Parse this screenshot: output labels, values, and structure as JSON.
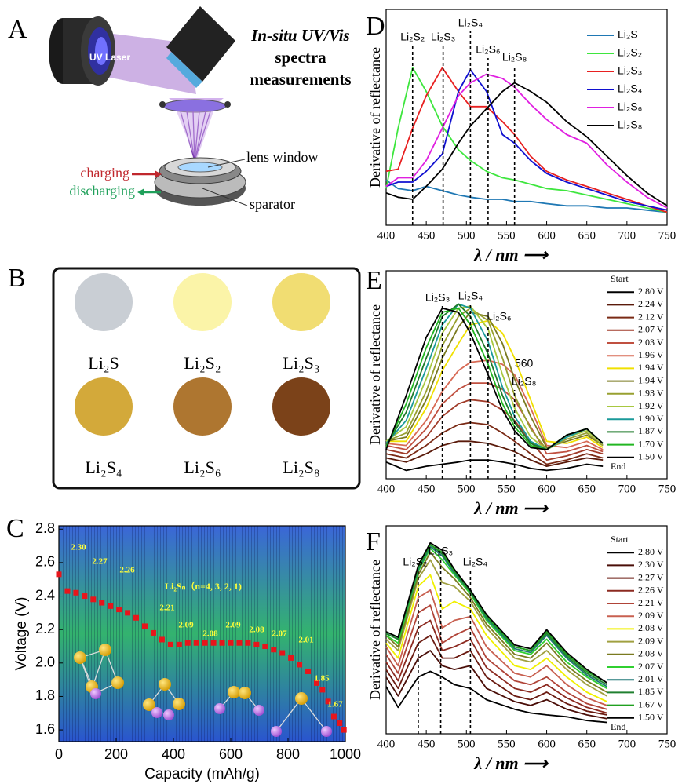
{
  "panel_labels": [
    "A",
    "B",
    "C",
    "D",
    "E",
    "F"
  ],
  "panel_a": {
    "title_lines": [
      "In-situ UV/Vis",
      "spectra",
      "measurements"
    ],
    "laser": "UV Laser",
    "lens": "lens window",
    "charging": "charging",
    "discharging": "discharging",
    "separator": "sparator"
  },
  "panel_b": {
    "samples": [
      {
        "label": "Li₂S",
        "color": "#c9ced4"
      },
      {
        "label": "Li₂S₂",
        "color": "#fbf4a8"
      },
      {
        "label": "Li₂S₃",
        "color": "#f1dd72"
      },
      {
        "label": "Li₂S₄",
        "color": "#d3a93a"
      },
      {
        "label": "Li₂S₆",
        "color": "#ae7630"
      },
      {
        "label": "Li₂S₈",
        "color": "#7b4219"
      }
    ]
  },
  "chart_data": [
    {
      "type": "scatter",
      "title": "Li₂Sₙ（n=4, 3, 2, 1)",
      "xlabel": "Capacity (mAh/g)",
      "ylabel": "Voltage (V)",
      "color": "#e8151b",
      "x": [
        0,
        30,
        60,
        90,
        120,
        150,
        180,
        210,
        240,
        270,
        300,
        330,
        360,
        390,
        420,
        450,
        480,
        510,
        540,
        570,
        600,
        630,
        660,
        690,
        720,
        750,
        780,
        810,
        840,
        870,
        900,
        920,
        940,
        960,
        980,
        995
      ],
      "values": [
        2.53,
        2.43,
        2.42,
        2.4,
        2.38,
        2.36,
        2.34,
        2.32,
        2.3,
        2.27,
        2.22,
        2.18,
        2.14,
        2.11,
        2.11,
        2.12,
        2.12,
        2.12,
        2.12,
        2.12,
        2.12,
        2.12,
        2.12,
        2.11,
        2.1,
        2.08,
        2.06,
        2.03,
        1.99,
        1.95,
        1.88,
        1.84,
        1.77,
        1.68,
        1.64,
        1.6
      ],
      "annotations": [
        "2.30",
        "2.27",
        "2.26",
        "2.21",
        "2.09",
        "2.08",
        "2.09",
        "2.08",
        "2.07",
        "2.01",
        "1.85",
        "1.67"
      ],
      "xlim": [
        0,
        1000
      ],
      "xticks": [
        0,
        200,
        400,
        600,
        800,
        1000
      ],
      "ylim": [
        1.53,
        2.82
      ],
      "yticks": [
        1.6,
        1.8,
        {
          "value": 2,
          "label": "2.0"
        },
        2.2,
        2.4,
        2.6,
        2.8
      ]
    },
    {
      "type": "line",
      "xlabel": "λ / nm ⟶",
      "ylabel": "Derivative of reflectance",
      "x": [
        400,
        415,
        433,
        450,
        470,
        490,
        505,
        525,
        545,
        560,
        580,
        600,
        625,
        650,
        675,
        700,
        725,
        750
      ],
      "series": [
        {
          "name": "Li₂S",
          "color": "#1f78b4",
          "values": [
            21,
            17,
            16,
            18,
            16,
            14,
            13,
            12,
            12,
            11,
            11,
            10,
            9,
            9,
            8,
            8,
            7,
            6
          ]
        },
        {
          "name": "Li₂S₂",
          "color": "#3ee63e",
          "values": [
            17,
            45,
            73,
            62,
            46,
            35,
            30,
            25,
            22,
            21,
            19,
            17,
            16,
            14,
            12,
            10,
            8,
            6
          ]
        },
        {
          "name": "Li₂S₃",
          "color": "#e82020",
          "values": [
            25,
            26,
            45,
            60,
            73,
            62,
            55,
            55,
            48,
            42,
            32,
            25,
            21,
            18,
            15,
            12,
            9,
            6
          ]
        },
        {
          "name": "Li₂S₄",
          "color": "#1010d0",
          "values": [
            18,
            20,
            20,
            25,
            33,
            62,
            72,
            62,
            42,
            38,
            30,
            24,
            20,
            17,
            14,
            11,
            9,
            7
          ]
        },
        {
          "name": "Li₂S₆",
          "color": "#e020e0",
          "values": [
            18,
            22,
            22,
            30,
            45,
            60,
            66,
            70,
            68,
            64,
            56,
            49,
            42,
            38,
            28,
            20,
            13,
            8
          ]
        },
        {
          "name": "Li₂S₈",
          "color": "#000000",
          "values": [
            15,
            13,
            12,
            18,
            26,
            38,
            46,
            54,
            62,
            66,
            62,
            57,
            48,
            41,
            32,
            23,
            15,
            9
          ]
        }
      ],
      "annotations": [
        {
          "text": "Li₂S₂",
          "x": 433
        },
        {
          "text": "Li₂S₃",
          "x": 471
        },
        {
          "text": "Li₂S₄",
          "x": 505
        },
        {
          "text": "Li₂S₆",
          "x": 527
        },
        {
          "text": "Li₂S₈",
          "x": 560
        }
      ],
      "xlim": [
        400,
        750
      ],
      "xticks": [
        400,
        450,
        500,
        550,
        600,
        650,
        700,
        750
      ],
      "ylim": [
        0,
        100
      ]
    },
    {
      "type": "line",
      "xlabel": "λ / nm ⟶",
      "ylabel": "Derivative of reflectance",
      "legend_title": "Start",
      "legend_footer": "End",
      "x": [
        400,
        425,
        450,
        470,
        490,
        505,
        527,
        545,
        560,
        580,
        600,
        625,
        650,
        670
      ],
      "series": [
        {
          "name": "2.80 V",
          "color": "#000000",
          "values": [
            8,
            4,
            6,
            7,
            8,
            9,
            9,
            8,
            7,
            5,
            4,
            5,
            7,
            6
          ]
        },
        {
          "name": "2.24 V",
          "color": "#5a1a0a",
          "values": [
            10,
            8,
            12,
            16,
            18,
            18,
            17,
            15,
            13,
            9,
            6,
            8,
            10,
            9
          ]
        },
        {
          "name": "2.12 V",
          "color": "#7a2a15",
          "values": [
            12,
            10,
            16,
            22,
            26,
            27,
            26,
            22,
            18,
            12,
            7,
            9,
            12,
            10
          ]
        },
        {
          "name": "2.07 V",
          "color": "#a03a28",
          "values": [
            14,
            12,
            20,
            30,
            36,
            38,
            37,
            33,
            28,
            18,
            9,
            11,
            14,
            12
          ]
        },
        {
          "name": "2.03 V",
          "color": "#c05040",
          "values": [
            16,
            14,
            24,
            36,
            43,
            46,
            46,
            43,
            38,
            25,
            12,
            13,
            16,
            13
          ]
        },
        {
          "name": "1.96 V",
          "color": "#d86a55",
          "values": [
            17,
            16,
            28,
            42,
            52,
            56,
            57,
            55,
            50,
            34,
            16,
            15,
            18,
            14
          ]
        },
        {
          "name": "1.94 V",
          "color": "#f0e000",
          "values": [
            18,
            18,
            34,
            52,
            65,
            74,
            76,
            70,
            58,
            38,
            18,
            17,
            20,
            15
          ]
        },
        {
          "name": "1.94 V",
          "color": "#7a7a20",
          "values": [
            18,
            20,
            38,
            58,
            73,
            80,
            78,
            65,
            48,
            30,
            15,
            18,
            21,
            16
          ]
        },
        {
          "name": "1.93 V",
          "color": "#98a030",
          "values": [
            18,
            22,
            42,
            64,
            78,
            82,
            76,
            58,
            40,
            24,
            14,
            19,
            22,
            16
          ]
        },
        {
          "name": "1.92 V",
          "color": "#a8c840",
          "values": [
            18,
            25,
            48,
            70,
            82,
            83,
            72,
            50,
            34,
            20,
            14,
            20,
            23,
            17
          ]
        },
        {
          "name": "1.90 V",
          "color": "#1a9a9a",
          "values": [
            17,
            28,
            53,
            74,
            84,
            82,
            66,
            44,
            30,
            18,
            14,
            20,
            24,
            17
          ]
        },
        {
          "name": "1.87 V",
          "color": "#1f7a2a",
          "values": [
            16,
            32,
            58,
            78,
            84,
            78,
            60,
            40,
            27,
            17,
            14,
            21,
            24,
            17
          ]
        },
        {
          "name": "1.70 V",
          "color": "#22b622",
          "values": [
            15,
            36,
            63,
            80,
            82,
            74,
            55,
            36,
            25,
            16,
            14,
            21,
            24,
            17
          ]
        },
        {
          "name": "1.50 V",
          "color": "#000000",
          "values": [
            14,
            40,
            68,
            82,
            80,
            70,
            50,
            33,
            23,
            15,
            14,
            21,
            24,
            17
          ]
        }
      ],
      "annotations": [
        {
          "text": "Li₂S₃",
          "x": 470
        },
        {
          "text": "Li₂S₄",
          "x": 505
        },
        {
          "text": "Li₂S₆",
          "x": 527
        },
        {
          "text": "Li₂S₈",
          "x": 560
        }
      ],
      "notes": [
        "560"
      ],
      "xlim": [
        400,
        750
      ],
      "xticks": [
        400,
        450,
        500,
        550,
        600,
        650,
        700,
        750
      ],
      "ylim": [
        0,
        100
      ]
    },
    {
      "type": "line",
      "xlabel": "λ / nm ⟶",
      "ylabel": "Derivative of reflectance",
      "legend_title": "Start",
      "legend_footer": "End",
      "x": [
        400,
        415,
        440,
        455,
        470,
        485,
        505,
        525,
        560,
        580,
        600,
        625,
        650,
        675
      ],
      "series": [
        {
          "name": "2.80 V",
          "color": "#000000",
          "values": [
            25,
            14,
            30,
            33,
            30,
            26,
            24,
            18,
            13,
            11,
            10,
            9,
            7,
            6
          ]
        },
        {
          "name": "2.30 V",
          "color": "#4a0e08",
          "values": [
            30,
            20,
            40,
            44,
            36,
            34,
            36,
            24,
            17,
            15,
            18,
            13,
            10,
            8
          ]
        },
        {
          "name": "2.27 V",
          "color": "#6a1a10",
          "values": [
            34,
            24,
            48,
            52,
            40,
            40,
            44,
            30,
            20,
            18,
            22,
            16,
            12,
            10
          ]
        },
        {
          "name": "2.26 V",
          "color": "#8c2a20",
          "values": [
            38,
            28,
            56,
            60,
            44,
            46,
            50,
            35,
            24,
            22,
            26,
            19,
            14,
            11
          ]
        },
        {
          "name": "2.21 V",
          "color": "#b04438",
          "values": [
            42,
            32,
            64,
            68,
            48,
            52,
            56,
            40,
            28,
            26,
            30,
            22,
            16,
            13
          ]
        },
        {
          "name": "2.09 V",
          "color": "#c86050",
          "values": [
            46,
            36,
            72,
            76,
            56,
            60,
            62,
            46,
            32,
            30,
            36,
            26,
            19,
            15
          ]
        },
        {
          "name": "2.08 V",
          "color": "#f0f000",
          "values": [
            48,
            40,
            78,
            84,
            66,
            70,
            66,
            52,
            36,
            34,
            40,
            30,
            22,
            17
          ]
        },
        {
          "name": "2.09 V",
          "color": "#a0a040",
          "values": [
            50,
            44,
            82,
            92,
            80,
            78,
            70,
            56,
            40,
            38,
            44,
            34,
            26,
            20
          ]
        },
        {
          "name": "2.08 V",
          "color": "#7a7a20",
          "values": [
            52,
            46,
            84,
            96,
            88,
            82,
            72,
            58,
            42,
            40,
            48,
            36,
            28,
            22
          ]
        },
        {
          "name": "2.07 V",
          "color": "#30d030",
          "values": [
            52,
            48,
            86,
            98,
            92,
            84,
            74,
            60,
            44,
            42,
            50,
            38,
            30,
            24
          ]
        },
        {
          "name": "2.01 V",
          "color": "#207878",
          "values": [
            53,
            50,
            87,
            99,
            94,
            85,
            75,
            61,
            45,
            43,
            52,
            40,
            31,
            25
          ]
        },
        {
          "name": "1.85 V",
          "color": "#208030",
          "values": [
            53,
            50,
            88,
            100,
            95,
            86,
            75,
            62,
            46,
            44,
            53,
            41,
            32,
            26
          ]
        },
        {
          "name": "1.67 V",
          "color": "#20a020",
          "values": [
            54,
            51,
            88,
            100,
            96,
            86,
            76,
            62,
            46,
            44,
            54,
            42,
            33,
            27
          ]
        },
        {
          "name": "1.50 V",
          "color": "#000000",
          "values": [
            54,
            51,
            89,
            101,
            97,
            87,
            76,
            63,
            47,
            45,
            55,
            43,
            34,
            27
          ]
        }
      ],
      "annotations": [
        {
          "text": "Li₂S₂",
          "x": 440
        },
        {
          "text": "Li₂S₃",
          "x": 468
        },
        {
          "text": "Li₂S₄",
          "x": 505
        }
      ],
      "xlim": [
        400,
        750
      ],
      "xticks": [
        400,
        450,
        500,
        550,
        600,
        650,
        700,
        750
      ],
      "ylim": [
        0,
        110
      ]
    }
  ]
}
